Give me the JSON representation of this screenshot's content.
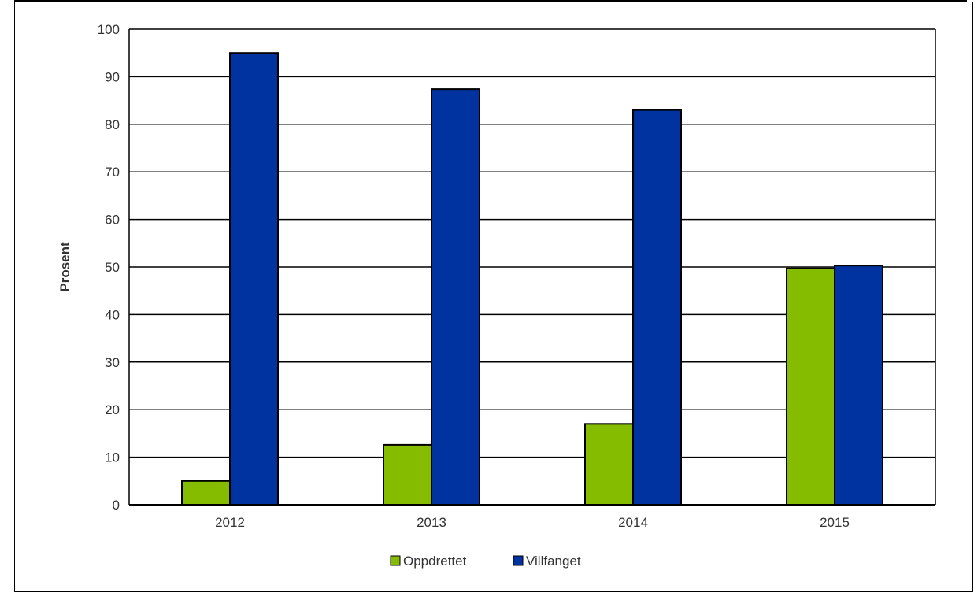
{
  "chart_data": {
    "type": "bar",
    "categories": [
      "2012",
      "2013",
      "2014",
      "2015"
    ],
    "series": [
      {
        "name": "Oppdrettet",
        "values": [
          5.0,
          12.6,
          17.0,
          49.7
        ],
        "color": "#85bc00"
      },
      {
        "name": "Villfanget",
        "values": [
          95.0,
          87.4,
          83.0,
          50.3
        ],
        "color": "#0033a0"
      }
    ],
    "title": "",
    "xlabel": "",
    "ylabel": "Prosent",
    "ylim": [
      0,
      100
    ],
    "yticks": [
      0,
      10,
      20,
      30,
      40,
      50,
      60,
      70,
      80,
      90,
      100
    ],
    "grid": true,
    "legend_position": "bottom-center"
  }
}
